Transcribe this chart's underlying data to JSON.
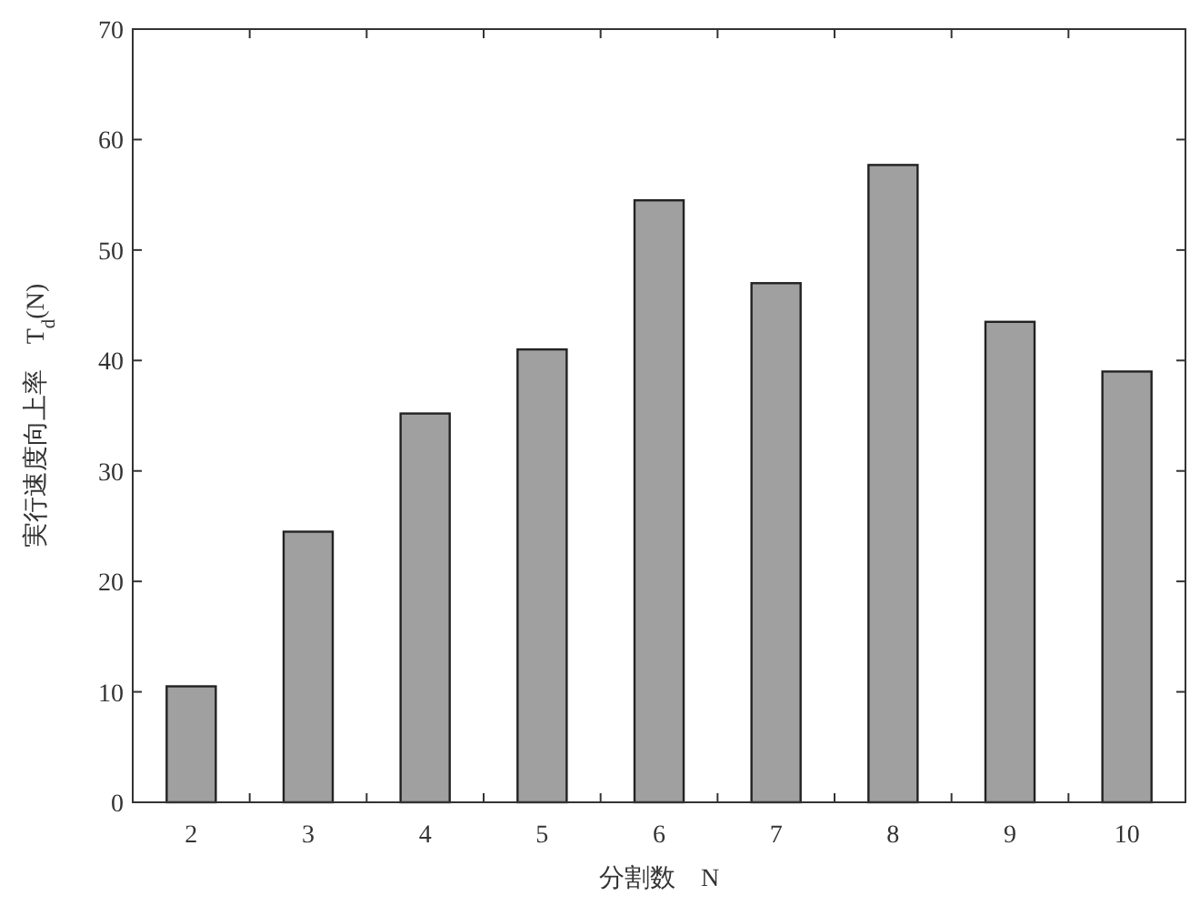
{
  "chart_data": {
    "type": "bar",
    "xlabel": "分割数　N",
    "ylabel": "実行速度向上率　T$_{d}$(N)",
    "categories": [
      "2",
      "3",
      "4",
      "5",
      "6",
      "7",
      "8",
      "9",
      "10"
    ],
    "values": [
      10.5,
      24.5,
      35.2,
      41,
      54.5,
      47,
      57.7,
      43.5,
      39
    ],
    "color": "#a0a0a0",
    "ylim": [
      0,
      70
    ],
    "yticks": [
      0,
      10,
      20,
      30,
      40,
      50,
      60,
      70
    ],
    "grid": false
  }
}
